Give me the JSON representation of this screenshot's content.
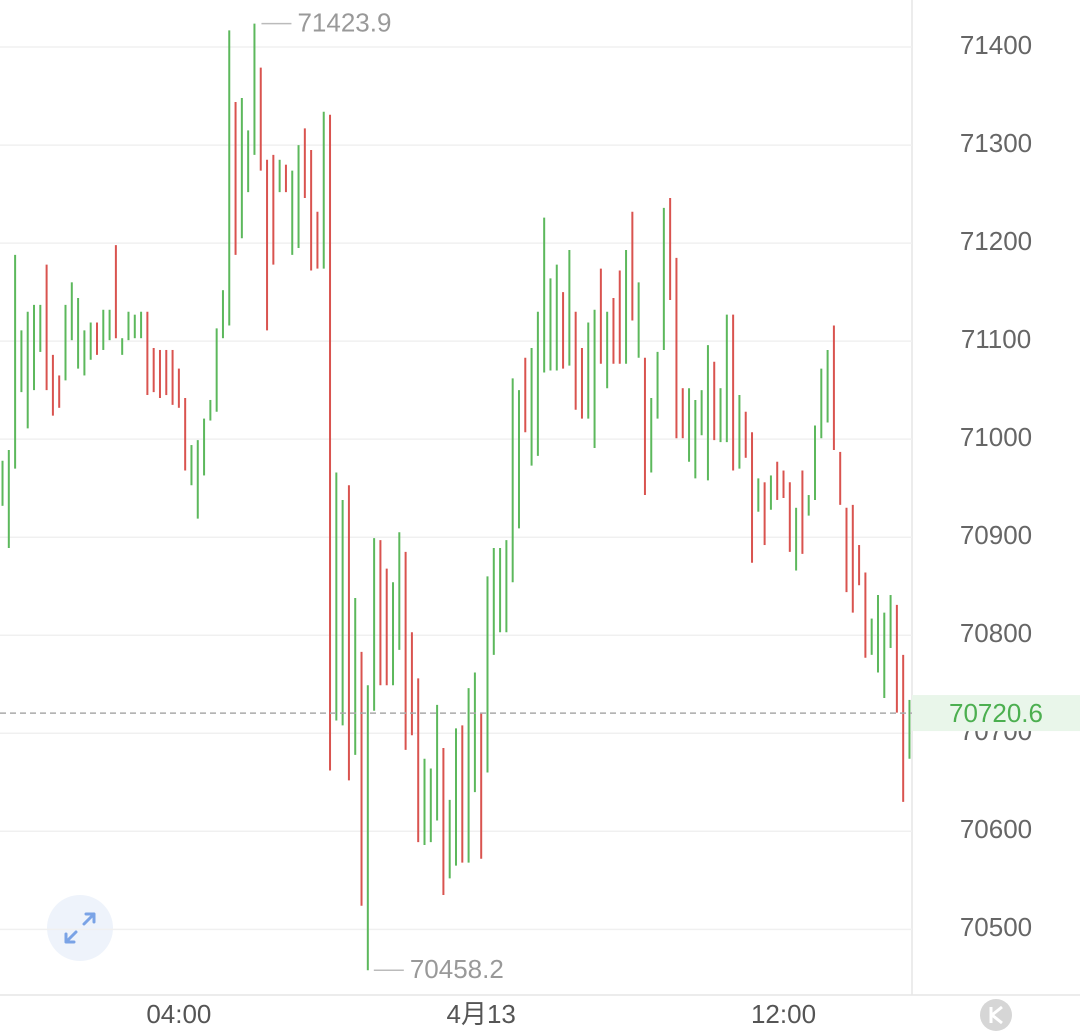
{
  "chart_data": {
    "type": "hlbar",
    "x": [
      100,
      105,
      110,
      115,
      120,
      125,
      130,
      135,
      140,
      145,
      150,
      155,
      160,
      165,
      170,
      175,
      180,
      185,
      190,
      195,
      200,
      205,
      210,
      215,
      220,
      225,
      230,
      235,
      240,
      245,
      250,
      255,
      260,
      265,
      270,
      275,
      280,
      285,
      290,
      295,
      300,
      305,
      310,
      315,
      320,
      325,
      330,
      335,
      340,
      345,
      350,
      355,
      360,
      365,
      370,
      375,
      380,
      385,
      390,
      395,
      400,
      405,
      410,
      415,
      420,
      425,
      430,
      435,
      440,
      445,
      450,
      455,
      460,
      465,
      470,
      475,
      480,
      485,
      490,
      495,
      500,
      505,
      510,
      515,
      520,
      525,
      530,
      535,
      540,
      545,
      550,
      555,
      560,
      565,
      570,
      575,
      580,
      585,
      590,
      595,
      600,
      605,
      610,
      615,
      620,
      625,
      630,
      635,
      640,
      645,
      650,
      655,
      660,
      665,
      670,
      675,
      680,
      685,
      690,
      695,
      700,
      705,
      710,
      715,
      720,
      725,
      730,
      735,
      740,
      745,
      750,
      755,
      760,
      765,
      770,
      775,
      780,
      785,
      790,
      795,
      800,
      805,
      810,
      815,
      820
    ],
    "high": [
      70978,
      70989,
      71188,
      71111,
      71130,
      71137,
      71137,
      71178,
      71086,
      71065,
      71137,
      71160,
      71144,
      71111,
      71119,
      71119,
      71132,
      71132,
      71198,
      71103,
      71130,
      71127,
      71130,
      71130,
      71093,
      71091,
      71091,
      71091,
      71072,
      71042,
      70994,
      70999,
      71021,
      71040,
      71113,
      71152,
      71417,
      71344,
      71348,
      71315,
      71423.9,
      71379,
      71285,
      71290,
      71285,
      71280,
      71274,
      71300,
      71317,
      71295,
      71232,
      71334,
      71331,
      70966,
      70938,
      70953,
      70838,
      70783,
      70749,
      70899,
      70897,
      70868,
      70854,
      70905,
      70885,
      70803,
      70756,
      70674,
      70664,
      70729,
      70685,
      70632,
      70705,
      70708,
      70746,
      70762,
      70721,
      70860,
      70889,
      70889,
      70897,
      71062,
      71050,
      71083,
      71093,
      71130,
      71226,
      71164,
      71178,
      71150,
      71193,
      71130,
      71093,
      71119,
      71132,
      71174,
      71130,
      71144,
      71172,
      71193,
      71232,
      71160,
      71083,
      71042,
      71089,
      71236,
      71246,
      71185,
      71052,
      71052,
      71040,
      71050,
      71096,
      71079,
      71052,
      71127,
      71127,
      71045,
      71028,
      71007,
      70960,
      70956,
      70963,
      70977,
      70968,
      70956,
      70930,
      70968,
      70943,
      71014,
      71072,
      71091,
      71116,
      70987,
      70930,
      70933,
      70892,
      70864,
      70817,
      70841,
      70823,
      70841,
      70831,
      70780,
      70734
    ],
    "low": [
      70932,
      70889,
      70970,
      71048,
      71011,
      71050,
      71089,
      71050,
      71024,
      71032,
      71060,
      71101,
      71072,
      71065,
      71081,
      71086,
      71091,
      71101,
      71103,
      71086,
      71101,
      71103,
      71103,
      71045,
      71048,
      71042,
      71045,
      71035,
      71032,
      70968,
      70953,
      70919,
      70963,
      71019,
      71028,
      71103,
      71116,
      71188,
      71205,
      71252,
      71290,
      71274,
      71111,
      71178,
      71252,
      71252,
      71188,
      71195,
      71246,
      71172,
      71174,
      71174,
      70662,
      70713,
      70708,
      70652,
      70678,
      70524,
      70458.2,
      70723,
      70749,
      70749,
      70749,
      70785,
      70683,
      70698,
      70589,
      70586,
      70589,
      70611,
      70535,
      70552,
      70565,
      70568,
      70568,
      70640,
      70572,
      70660,
      70780,
      70803,
      70803,
      70854,
      70909,
      71007,
      70973,
      70983,
      71068,
      71070,
      71070,
      71072,
      71075,
      71030,
      71021,
      71021,
      70991,
      71077,
      71052,
      71077,
      71077,
      71077,
      71121,
      71083,
      70943,
      70966,
      71021,
      71091,
      71142,
      71001,
      71001,
      70977,
      70960,
      71004,
      70958,
      70999,
      70997,
      70997,
      70968,
      70970,
      70981,
      70874,
      70926,
      70892,
      70928,
      70938,
      70940,
      70885,
      70866,
      70883,
      70922,
      70938,
      71001,
      71017,
      70989,
      70933,
      70844,
      70823,
      70851,
      70777,
      70780,
      70762,
      70736,
      70787,
      70721,
      70630,
      70674
    ],
    "rising": [
      true,
      true,
      true,
      true,
      true,
      true,
      true,
      false,
      false,
      false,
      true,
      true,
      true,
      true,
      true,
      false,
      true,
      true,
      false,
      true,
      true,
      true,
      true,
      false,
      false,
      false,
      false,
      false,
      false,
      false,
      true,
      true,
      true,
      true,
      true,
      true,
      true,
      false,
      true,
      true,
      true,
      false,
      false,
      false,
      true,
      false,
      true,
      true,
      false,
      false,
      false,
      true,
      false,
      true,
      true,
      false,
      true,
      false,
      true,
      true,
      false,
      false,
      true,
      true,
      false,
      false,
      false,
      true,
      true,
      true,
      false,
      true,
      true,
      false,
      true,
      true,
      false,
      true,
      true,
      true,
      true,
      true,
      true,
      false,
      true,
      true,
      true,
      true,
      true,
      false,
      true,
      false,
      false,
      true,
      true,
      false,
      true,
      false,
      false,
      true,
      false,
      true,
      false,
      true,
      true,
      true,
      false,
      false,
      false,
      true,
      true,
      true,
      true,
      false,
      true,
      true,
      false,
      true,
      false,
      false,
      true,
      false,
      true,
      false,
      false,
      false,
      true,
      false,
      true,
      true,
      true,
      true,
      false,
      false,
      false,
      false,
      false,
      false,
      true,
      true,
      true,
      true,
      false,
      false,
      true
    ],
    "up_color": "#5cb85c",
    "down_color": "#d9534f",
    "xlim": [
      98,
      822
    ],
    "xticks": [
      {
        "value": 240,
        "label": "04:00"
      },
      {
        "value": 480,
        "label": "4月13"
      },
      {
        "value": 720,
        "label": "12:00"
      }
    ],
    "ylim": [
      70433,
      71448
    ],
    "yticks": [
      70500,
      70600,
      70700,
      70800,
      70900,
      71000,
      71100,
      71200,
      71300,
      71400
    ],
    "grid": true,
    "annotations": {
      "high": 71423.9,
      "low": 70458.2,
      "last": 70720.6
    }
  }
}
